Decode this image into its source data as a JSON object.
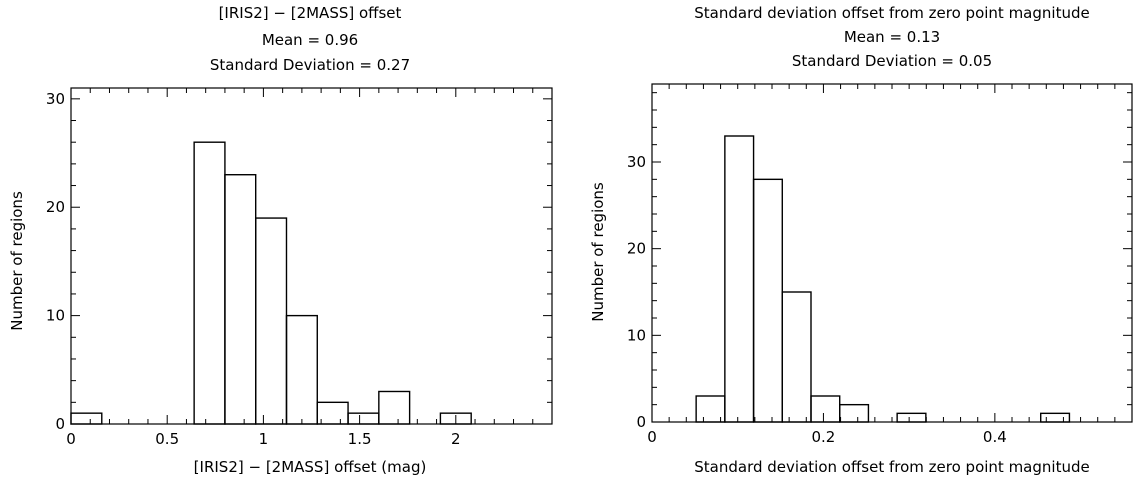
{
  "chart_data": [
    {
      "type": "bar",
      "subtype": "histogram",
      "title": "[IRIS2] − [2MASS] offset",
      "stats": [
        "Mean =  0.96",
        "Standard Deviation =  0.27"
      ],
      "xlabel": "[IRIS2] − [2MASS] offset (mag)",
      "ylabel": "Number of regions",
      "xlim": [
        0,
        2.5
      ],
      "ylim": [
        0,
        31
      ],
      "xticks": [
        0,
        0.5,
        1,
        1.5,
        2
      ],
      "xtick_labels": [
        "0",
        "0.5",
        "1",
        "1.5",
        "2"
      ],
      "xminor_step": 0.1,
      "yticks": [
        0,
        10,
        20,
        30
      ],
      "ytick_labels": [
        "0",
        "10",
        "20",
        "30"
      ],
      "yminor_step": 2,
      "bin_edges": [
        0,
        0.16,
        0.32,
        0.48,
        0.64,
        0.8,
        0.96,
        1.12,
        1.28,
        1.44,
        1.6,
        1.76,
        1.92,
        2.08
      ],
      "counts": [
        1,
        0,
        0,
        0,
        26,
        23,
        19,
        10,
        2,
        1,
        3,
        0,
        1
      ]
    },
    {
      "type": "bar",
      "subtype": "histogram",
      "title": "Standard deviation offset from zero point magnitude",
      "stats": [
        "Mean =  0.13",
        "Standard Deviation =  0.05"
      ],
      "xlabel": "Standard deviation offset from zero point magnitude",
      "ylabel": "Number of regions",
      "xlim": [
        0,
        0.56
      ],
      "ylim": [
        0,
        39
      ],
      "xticks": [
        0,
        0.2,
        0.4
      ],
      "xtick_labels": [
        "0",
        "0.2",
        "0.4"
      ],
      "xminor_step": 0.02,
      "yticks": [
        0,
        10,
        20,
        30
      ],
      "ytick_labels": [
        "0",
        "10",
        "20",
        "30"
      ],
      "yminor_step": 2,
      "bin_edges": [
        0.018,
        0.0515,
        0.085,
        0.1185,
        0.152,
        0.1855,
        0.219,
        0.2525,
        0.286,
        0.3195,
        0.353,
        0.3865,
        0.42,
        0.4535,
        0.487
      ],
      "counts": [
        0,
        3,
        33,
        28,
        15,
        3,
        2,
        0,
        1,
        0,
        0,
        0,
        0,
        1
      ]
    }
  ]
}
